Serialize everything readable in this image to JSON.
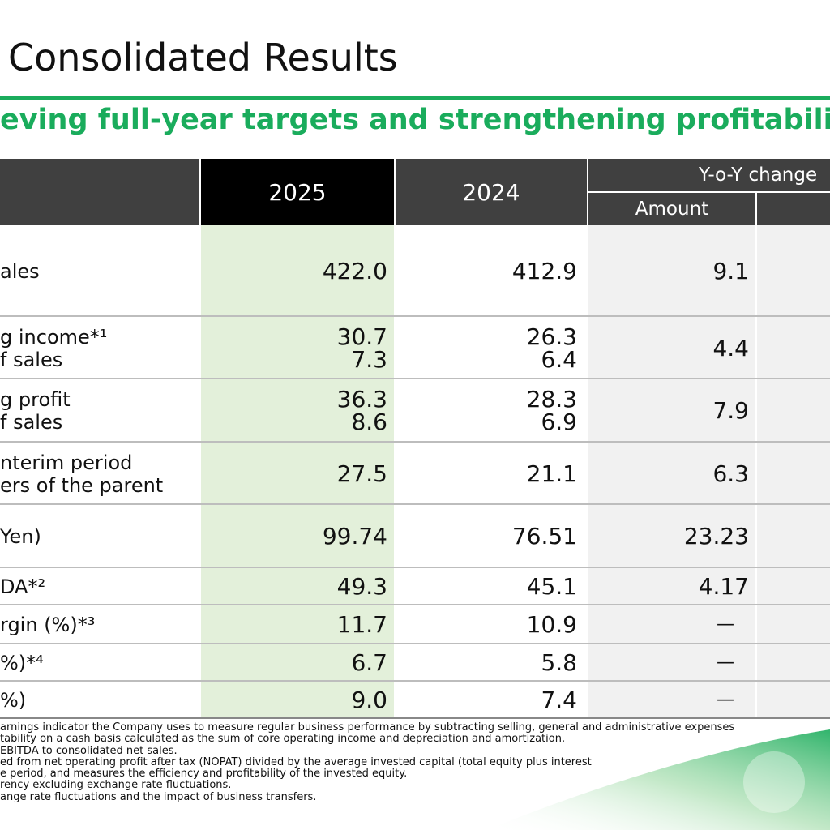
{
  "header": {
    "title": "Consolidated Results",
    "subtitle": "eving full-year targets and strengthening profitability"
  },
  "table": {
    "columns": {
      "y2025": "2025",
      "y2024": "2024",
      "yoy": "Y-o-Y change",
      "amount": "Amount"
    },
    "rows": [
      {
        "label": [
          "ales"
        ],
        "y2025": [
          "422.0"
        ],
        "y2024": [
          "412.9"
        ],
        "amount": "9.1"
      },
      {
        "label": [
          "g income*¹",
          "f sales"
        ],
        "y2025": [
          "30.7",
          "7.3"
        ],
        "y2024": [
          "26.3",
          "6.4"
        ],
        "amount": "4.4"
      },
      {
        "label": [
          "g profit",
          "f sales"
        ],
        "y2025": [
          "36.3",
          "8.6"
        ],
        "y2024": [
          "28.3",
          "6.9"
        ],
        "amount": "7.9"
      },
      {
        "label": [
          "nterim period",
          "ers of the parent"
        ],
        "y2025": [
          "27.5"
        ],
        "y2024": [
          "21.1"
        ],
        "amount": "6.3"
      },
      {
        "label": [
          "Yen)"
        ],
        "y2025": [
          "99.74"
        ],
        "y2024": [
          "76.51"
        ],
        "amount": "23.23"
      },
      {
        "label": [
          "DA*²"
        ],
        "y2025": [
          "49.3"
        ],
        "y2024": [
          "45.1"
        ],
        "amount": "4.17"
      },
      {
        "label": [
          "rgin (%)*³"
        ],
        "y2025": [
          "11.7"
        ],
        "y2024": [
          "10.9"
        ],
        "amount": "—"
      },
      {
        "label": [
          "%)*⁴"
        ],
        "y2025": [
          "6.7"
        ],
        "y2024": [
          "5.8"
        ],
        "amount": "—"
      },
      {
        "label": [
          "%)"
        ],
        "y2025": [
          "9.0"
        ],
        "y2024": [
          "7.4"
        ],
        "amount": "—"
      }
    ]
  },
  "footnotes": [
    "arnings indicator the Company uses to measure regular business performance by subtracting selling, general and administrative expenses",
    "tability on a cash basis calculated as the sum of core operating income and depreciation and amortization.",
    "EBITDA to consolidated net sales.",
    "ed from net operating profit after tax (NOPAT) divided by the average invested capital (total equity plus interest",
    "e period, and measures the efficiency and profitability of the invested equity.",
    "rency excluding exchange rate fluctuations.",
    "ange rate fluctuations and the impact of business transfers."
  ]
}
